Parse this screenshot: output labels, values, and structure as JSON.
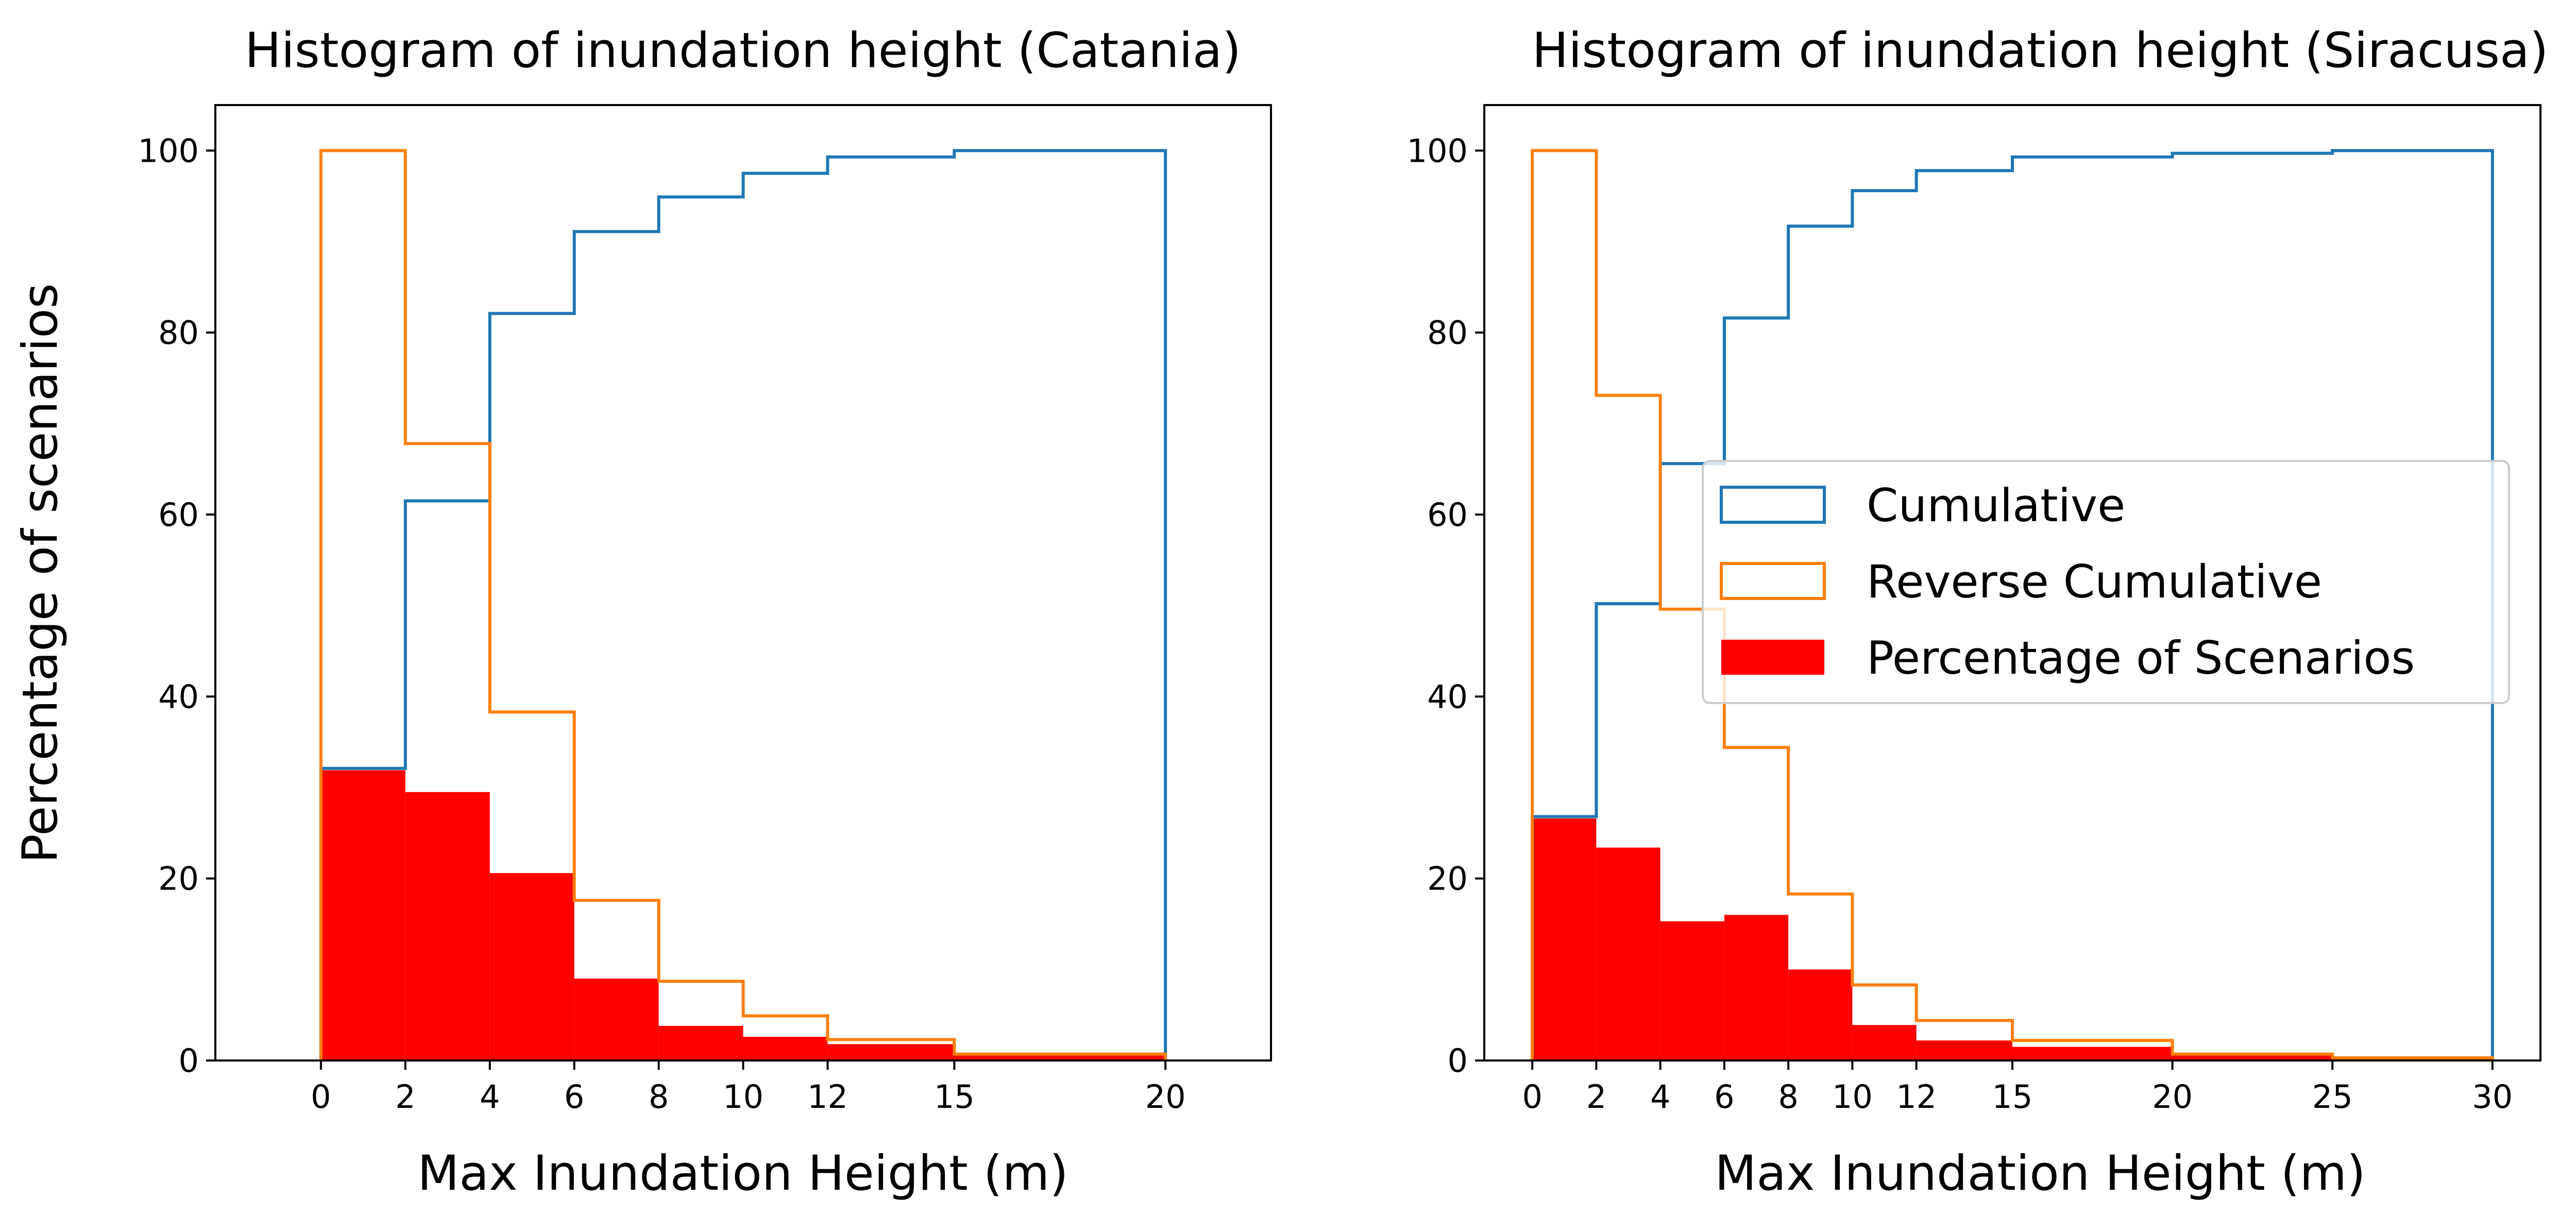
{
  "colors": {
    "cumulative": "#1f77b4",
    "reverse_cumulative": "#ff7f0e",
    "percentage": "#ff0000",
    "axes": "#000000",
    "legend_border": "#cccccc"
  },
  "chart_data": [
    {
      "type": "histogram",
      "title": "Histogram of inundation height (Catania)",
      "xlabel": "Max Inundation Height (m)",
      "ylabel": "Percentage of scenarios",
      "xlim": [
        -2.5,
        22.5
      ],
      "ylim": [
        0,
        105
      ],
      "xticks": [
        0,
        2,
        4,
        6,
        8,
        10,
        12,
        15,
        20
      ],
      "yticks": [
        0,
        20,
        40,
        60,
        80,
        100
      ],
      "bin_edges": [
        0,
        2,
        4,
        6,
        8,
        10,
        12,
        15,
        20
      ],
      "legend": null,
      "series": [
        {
          "name": "Cumulative",
          "style": "step",
          "values": [
            32.1,
            61.5,
            82.1,
            91.1,
            94.9,
            97.5,
            99.3,
            100
          ]
        },
        {
          "name": "Reverse Cumulative",
          "style": "step",
          "values": [
            100,
            67.8,
            38.3,
            17.6,
            8.7,
            4.9,
            2.3,
            0.7
          ]
        },
        {
          "name": "Percentage of Scenarios",
          "style": "filled",
          "values": [
            31.9,
            29.5,
            20.6,
            9.0,
            3.8,
            2.6,
            1.8,
            0.7
          ]
        }
      ]
    },
    {
      "type": "histogram",
      "title": "Histogram of inundation height (Siracusa)",
      "xlabel": "Max Inundation Height (m)",
      "ylabel": "",
      "xlim": [
        -1.5,
        31.5
      ],
      "ylim": [
        0,
        105
      ],
      "xticks": [
        0,
        2,
        4,
        6,
        8,
        10,
        12,
        15,
        20,
        25,
        30
      ],
      "yticks": [
        0,
        20,
        40,
        60,
        80,
        100
      ],
      "bin_edges": [
        0,
        2,
        4,
        6,
        8,
        10,
        12,
        15,
        20,
        25,
        30
      ],
      "legend": {
        "placement": "center-right",
        "entries": [
          "Cumulative",
          "Reverse Cumulative",
          "Percentage of Scenarios"
        ]
      },
      "series": [
        {
          "name": "Cumulative",
          "style": "step",
          "values": [
            26.8,
            50.2,
            65.6,
            81.6,
            91.7,
            95.6,
            97.8,
            99.3,
            99.7,
            100
          ]
        },
        {
          "name": "Reverse Cumulative",
          "style": "step",
          "values": [
            100,
            73.1,
            49.6,
            34.4,
            18.3,
            8.3,
            4.4,
            2.2,
            0.7,
            0.3
          ]
        },
        {
          "name": "Percentage of Scenarios",
          "style": "filled",
          "values": [
            26.6,
            23.4,
            15.3,
            16.0,
            10.0,
            3.9,
            2.2,
            1.5,
            0.6,
            0.3
          ]
        }
      ]
    }
  ]
}
